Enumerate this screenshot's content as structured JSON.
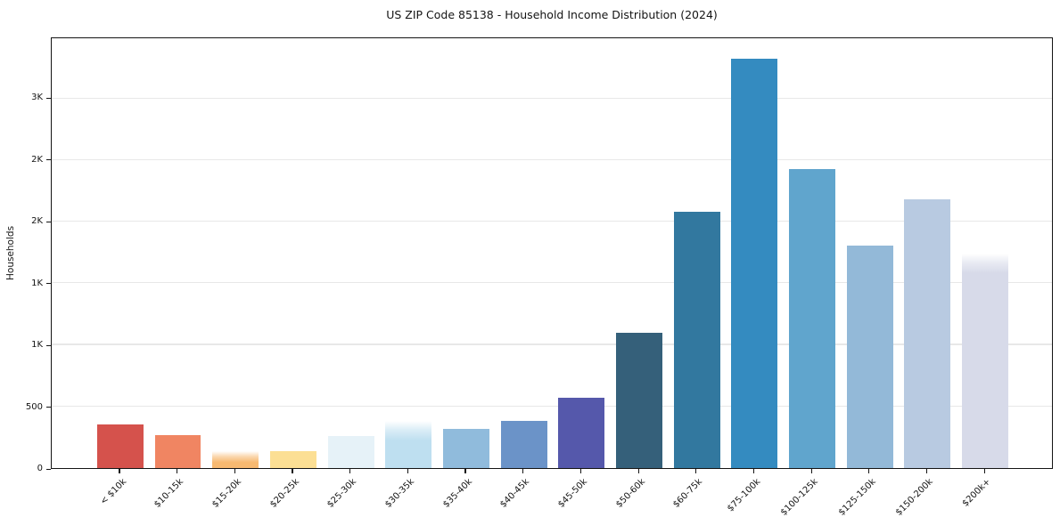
{
  "chart_data": {
    "type": "bar",
    "title": "US ZIP Code 85138 - Household Income Distribution (2024)",
    "xlabel": "",
    "ylabel": "Households",
    "categories": [
      "< $10k",
      "$10-15k",
      "$15-20k",
      "$20-25k",
      "$25-30k",
      "$30-35k",
      "$35-40k",
      "$40-45k",
      "$45-50k",
      "$50-60k",
      "$60-75k",
      "$75-100k",
      "$100-125k",
      "$125-150k",
      "$150-200k",
      "$200k+"
    ],
    "values": [
      355,
      265,
      140,
      135,
      260,
      385,
      315,
      380,
      565,
      1095,
      2075,
      3310,
      2420,
      1800,
      2175,
      1735
    ],
    "bar_colors": [
      "#d5524c",
      "#f08562",
      "#f7b971",
      "#fcdf94",
      "#e6f2f8",
      "#bedff0",
      "#90bbdc",
      "#6b93c8",
      "#5558ab",
      "#35607a",
      "#32789f",
      "#348bc0",
      "#60a5cd",
      "#93b9d8",
      "#b8cae1",
      "#d7dae9"
    ],
    "soft_top_bars": [
      2,
      5,
      15
    ],
    "ylim": [
      0,
      3490
    ],
    "yticks": {
      "values": [
        0,
        500,
        1000,
        1500,
        2000,
        2500,
        3000
      ],
      "labels": [
        "0",
        "500",
        "1K",
        "1K",
        "2K",
        "2K",
        "3K"
      ]
    },
    "grid": "horizontal",
    "legend": "none",
    "style": {
      "background_color": "#ffffff",
      "spine_color": "#141414",
      "gridline_color": "#e8e8e8",
      "text_color": "#141414"
    }
  }
}
